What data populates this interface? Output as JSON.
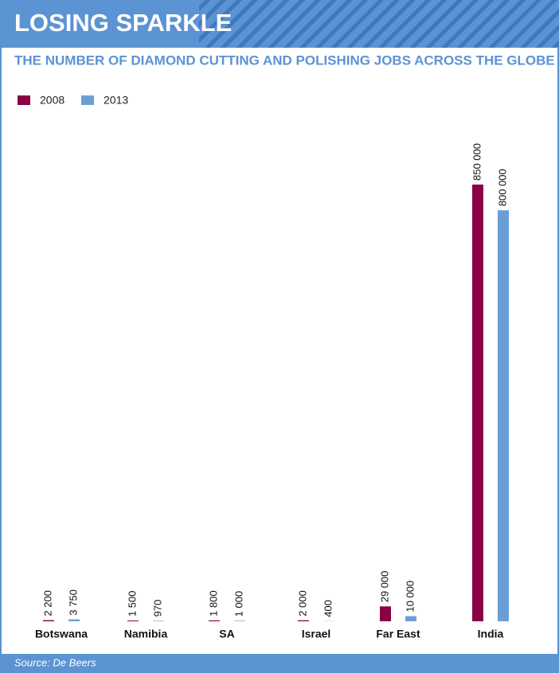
{
  "chart_data": {
    "type": "bar",
    "title": "LOSING SPARKLE",
    "subtitle": "THE NUMBER OF DIAMOND CUTTING AND POLISHING JOBS ACROSS THE GLOBE",
    "source": "Source: De Beers",
    "categories": [
      "Botswana",
      "Namibia",
      "SA",
      "Israel",
      "Far East",
      "India"
    ],
    "series": [
      {
        "name": "2008",
        "color": "#8b0047",
        "values": [
          2200,
          1500,
          1800,
          2000,
          29000,
          850000
        ],
        "value_labels": [
          "2 200",
          "1 500",
          "1 800",
          "2 000",
          "29 000",
          "850 000"
        ]
      },
      {
        "name": "2013",
        "color": "#6a9fd6",
        "values": [
          3750,
          970,
          1000,
          400,
          10000,
          800000
        ],
        "value_labels": [
          "3 750",
          "970",
          "1 000",
          "400",
          "10 000",
          "800 000"
        ]
      }
    ],
    "legend": "top-left"
  }
}
